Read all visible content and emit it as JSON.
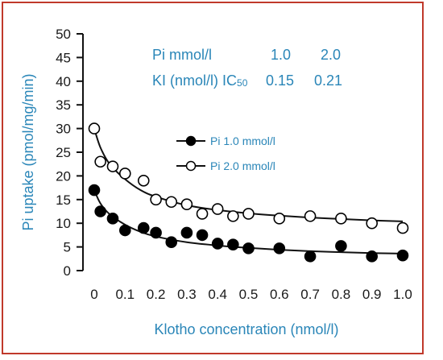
{
  "chart_data": {
    "type": "scatter",
    "xlabel": "Klotho concentration (nmol/l)",
    "ylabel": "Pi uptake (pmol/mg/min)",
    "xlim": [
      0,
      1.0
    ],
    "ylim": [
      0,
      50
    ],
    "x_ticks": [
      "0",
      "0.1",
      "0.2",
      "0.3",
      "0.4",
      "0.5",
      "0.6",
      "0.7",
      "0.8",
      "0.9",
      "1.0"
    ],
    "y_ticks": [
      "0",
      "5",
      "10",
      "15",
      "20",
      "25",
      "30",
      "35",
      "40",
      "45",
      "50"
    ],
    "legend_position": "middle",
    "series": [
      {
        "name": "Pi 1.0 mmol/l",
        "marker": "filled-circle",
        "points": [
          [
            0.0,
            17.0
          ],
          [
            0.02,
            12.5
          ],
          [
            0.06,
            11.0
          ],
          [
            0.1,
            8.5
          ],
          [
            0.16,
            9.0
          ],
          [
            0.2,
            8.0
          ],
          [
            0.25,
            6.0
          ],
          [
            0.3,
            8.0
          ],
          [
            0.35,
            7.5
          ],
          [
            0.4,
            5.7
          ],
          [
            0.45,
            5.5
          ],
          [
            0.5,
            4.7
          ],
          [
            0.6,
            4.7
          ],
          [
            0.7,
            3.0
          ],
          [
            0.8,
            5.2
          ],
          [
            0.9,
            3.0
          ],
          [
            1.0,
            3.2
          ]
        ],
        "fit_curve": [
          [
            0.0,
            17.0
          ],
          [
            0.02,
            14.2
          ],
          [
            0.05,
            11.9
          ],
          [
            0.1,
            9.7
          ],
          [
            0.15,
            8.2
          ],
          [
            0.2,
            7.2
          ],
          [
            0.3,
            6.0
          ],
          [
            0.4,
            5.3
          ],
          [
            0.5,
            4.8
          ],
          [
            0.6,
            4.4
          ],
          [
            0.7,
            4.1
          ],
          [
            0.8,
            3.9
          ],
          [
            0.9,
            3.7
          ],
          [
            1.0,
            3.6
          ]
        ]
      },
      {
        "name": "Pi 2.0 mmol/l",
        "marker": "open-circle",
        "points": [
          [
            0.0,
            30.0
          ],
          [
            0.02,
            23.0
          ],
          [
            0.06,
            22.0
          ],
          [
            0.1,
            20.5
          ],
          [
            0.16,
            19.0
          ],
          [
            0.2,
            15.0
          ],
          [
            0.25,
            14.5
          ],
          [
            0.3,
            14.0
          ],
          [
            0.35,
            12.0
          ],
          [
            0.4,
            13.0
          ],
          [
            0.45,
            11.5
          ],
          [
            0.5,
            12.0
          ],
          [
            0.6,
            11.0
          ],
          [
            0.7,
            11.5
          ],
          [
            0.8,
            11.0
          ],
          [
            0.9,
            10.0
          ],
          [
            1.0,
            9.0
          ]
        ],
        "fit_curve": [
          [
            0.0,
            30.0
          ],
          [
            0.02,
            26.0
          ],
          [
            0.05,
            22.5
          ],
          [
            0.1,
            19.3
          ],
          [
            0.15,
            17.0
          ],
          [
            0.2,
            15.6
          ],
          [
            0.3,
            13.8
          ],
          [
            0.4,
            12.8
          ],
          [
            0.5,
            12.1
          ],
          [
            0.6,
            11.6
          ],
          [
            0.7,
            11.2
          ],
          [
            0.8,
            10.9
          ],
          [
            0.9,
            10.6
          ],
          [
            1.0,
            10.4
          ]
        ]
      }
    ],
    "annotations": {
      "row1": {
        "label": "Pi mmol/l",
        "value1": "1.0",
        "value2": "2.0"
      },
      "row2": {
        "label": "KI (nmol/l) IC",
        "subscript": "50",
        "value1": "0.15",
        "value2": "0.21"
      }
    }
  },
  "colors": {
    "frame": "#c0392b",
    "text_accent": "#2a86b8",
    "axis": "#111111",
    "marker": "#000000"
  }
}
